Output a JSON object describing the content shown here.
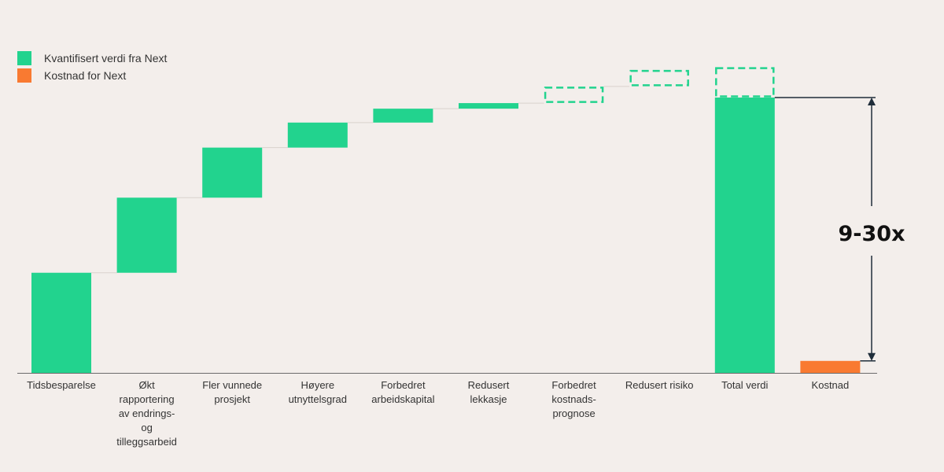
{
  "chart_data": {
    "type": "waterfall",
    "title": "",
    "xlabel": "",
    "ylabel": "",
    "ylim": [
      0,
      110
    ],
    "grid": false,
    "legend_position": "top-left",
    "legend": [
      {
        "key": "value",
        "label": "Kvantifisert verdi fra Next",
        "color": "#22d38e"
      },
      {
        "key": "cost",
        "label": "Kostnad for Next",
        "color": "#f97a31"
      }
    ],
    "bars": [
      {
        "category": [
          "Tidsbesparelse"
        ],
        "value": 36,
        "kind": "increment"
      },
      {
        "category": [
          "Økt",
          "rapportering",
          "av endrings-",
          "og",
          "tilleggsarbeid"
        ],
        "value": 27,
        "kind": "increment"
      },
      {
        "category": [
          "Fler vunnede",
          "prosjekt"
        ],
        "value": 18,
        "kind": "increment"
      },
      {
        "category": [
          "Høyere",
          "utnyttelsgrad"
        ],
        "value": 9,
        "kind": "increment"
      },
      {
        "category": [
          "Forbedret",
          "arbeidskapital"
        ],
        "value": 5,
        "kind": "increment"
      },
      {
        "category": [
          "Redusert",
          "lekkasje"
        ],
        "value": 2,
        "kind": "increment"
      },
      {
        "category": [
          "Forbedret",
          "kostnads-",
          "prognose"
        ],
        "value": 6,
        "kind": "unquantified"
      },
      {
        "category": [
          "Redusert risiko"
        ],
        "value": 6,
        "kind": "unquantified"
      },
      {
        "category": [
          "Total verdi"
        ],
        "value": 99,
        "extra": 11,
        "kind": "total"
      },
      {
        "category": [
          "Kostnad"
        ],
        "value": 4.3,
        "kind": "cost"
      }
    ],
    "annotation": {
      "text": "9-30x",
      "from": "Kostnad",
      "to": "Total verdi"
    }
  }
}
